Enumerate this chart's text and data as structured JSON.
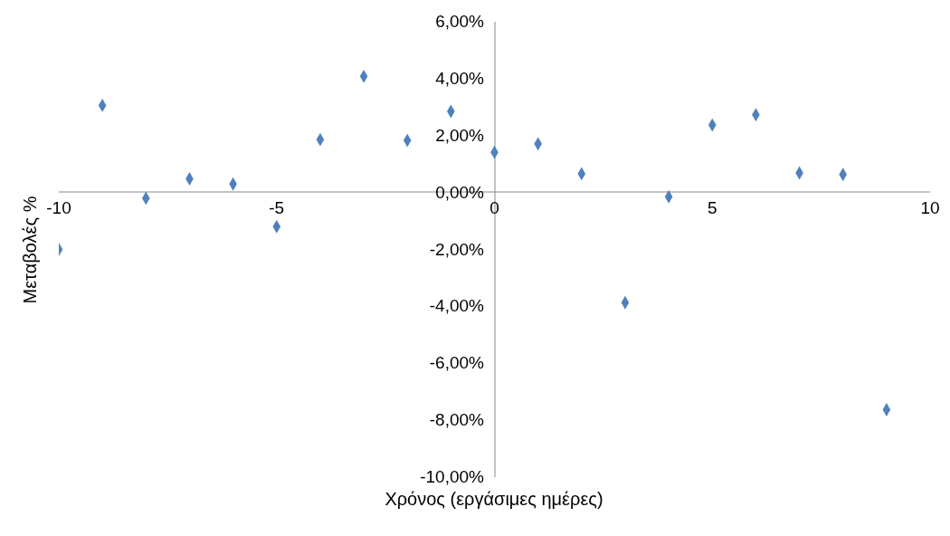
{
  "chart_data": {
    "type": "scatter",
    "xlabel": "Χρόνος (εργάσιμες ημέρες)",
    "ylabel": "Μεταβολές %",
    "x": [
      -10,
      -9,
      -8,
      -7,
      -6,
      -5,
      -4,
      -3,
      -2,
      -1,
      0,
      1,
      2,
      3,
      4,
      5,
      6,
      7,
      8,
      9
    ],
    "series": [
      {
        "color": "#4f81bd",
        "values": [
          -2.0,
          3.06,
          -0.2,
          0.48,
          0.3,
          -1.2,
          1.86,
          4.08,
          1.83,
          2.85,
          1.41,
          1.71,
          0.66,
          -3.87,
          -0.15,
          2.37,
          2.73,
          0.69,
          0.63,
          -7.63
        ]
      }
    ],
    "xlim": [
      -10,
      10
    ],
    "xticks": [
      -10,
      -5,
      0,
      5,
      10
    ],
    "ylim": [
      -10,
      6
    ],
    "yticks": [
      {
        "value": -10,
        "label": "-10,00%"
      },
      {
        "value": -8,
        "label": "-8,00%"
      },
      {
        "value": -6,
        "label": "-6,00%"
      },
      {
        "value": -4,
        "label": "-4,00%"
      },
      {
        "value": -2,
        "label": "-2,00%"
      },
      {
        "value": 0,
        "label": "0,00%"
      },
      {
        "value": 2,
        "label": "2,00%"
      },
      {
        "value": 4,
        "label": "4,00%"
      },
      {
        "value": 6,
        "label": "6,00%"
      }
    ],
    "marker": "diamond",
    "grid": false,
    "legend": false
  }
}
